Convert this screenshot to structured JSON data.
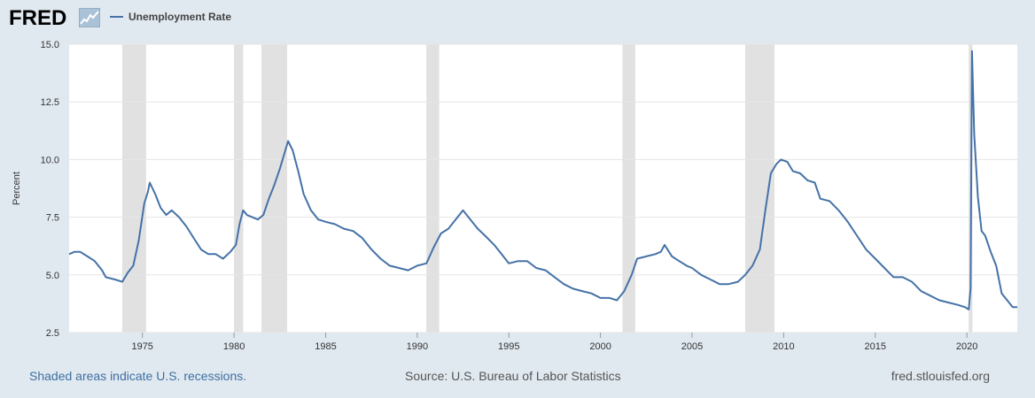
{
  "header": {
    "logo_text": "FRED",
    "legend_label": "Unemployment Rate"
  },
  "footer": {
    "recession_note": "Shaded areas indicate U.S. recessions.",
    "source": "Source: U.S. Bureau of Labor Statistics",
    "site": "fred.stlouisfed.org"
  },
  "colors": {
    "line": "#4572a7",
    "recession": "#e1e1e1",
    "grid": "#e6e6e6",
    "background": "#e1e9f0",
    "plot_background": "#ffffff"
  },
  "chart_data": {
    "type": "line",
    "title": "",
    "xlabel": "",
    "ylabel": "Percent",
    "xlim": [
      1971.0,
      2022.75
    ],
    "ylim": [
      2.5,
      15.0
    ],
    "yticks": [
      2.5,
      5.0,
      7.5,
      10.0,
      12.5,
      15.0
    ],
    "ytick_labels": [
      "2.5",
      "5.0",
      "7.5",
      "10.0",
      "12.5",
      "15.0"
    ],
    "xticks": [
      1975,
      1980,
      1985,
      1990,
      1995,
      2000,
      2005,
      2010,
      2015,
      2020
    ],
    "xtick_labels": [
      "1975",
      "1980",
      "1985",
      "1990",
      "1995",
      "2000",
      "2005",
      "2010",
      "2015",
      "2020"
    ],
    "grid": "horizontal",
    "legend": "top-left",
    "recessions": [
      [
        1973.9,
        1975.2
      ],
      [
        1980.0,
        1980.5
      ],
      [
        1981.5,
        1982.9
      ],
      [
        1990.5,
        1991.2
      ],
      [
        2001.2,
        2001.9
      ],
      [
        2007.9,
        2009.5
      ],
      [
        2020.1,
        2020.3
      ]
    ],
    "series": [
      {
        "name": "Unemployment Rate",
        "x": [
          1971.0,
          1971.3,
          1971.6,
          1972.0,
          1972.4,
          1972.8,
          1973.0,
          1973.5,
          1973.9,
          1974.2,
          1974.5,
          1974.8,
          1975.1,
          1975.3,
          1975.4,
          1975.7,
          1976.0,
          1976.3,
          1976.6,
          1977.0,
          1977.4,
          1977.8,
          1978.2,
          1978.6,
          1979.0,
          1979.4,
          1979.8,
          1980.1,
          1980.3,
          1980.5,
          1980.7,
          1981.0,
          1981.3,
          1981.6,
          1981.9,
          1982.2,
          1982.5,
          1982.8,
          1982.95,
          1983.2,
          1983.5,
          1983.8,
          1984.2,
          1984.6,
          1985.0,
          1985.5,
          1986.0,
          1986.5,
          1987.0,
          1987.5,
          1988.0,
          1988.5,
          1989.0,
          1989.5,
          1990.0,
          1990.5,
          1990.9,
          1991.3,
          1991.7,
          1992.0,
          1992.3,
          1992.5,
          1992.9,
          1993.3,
          1993.7,
          1994.2,
          1994.6,
          1995.0,
          1995.5,
          1996.0,
          1996.5,
          1997.0,
          1997.5,
          1998.0,
          1998.5,
          1999.0,
          1999.5,
          2000.0,
          2000.5,
          2000.9,
          2001.3,
          2001.7,
          2002.0,
          2002.5,
          2003.0,
          2003.3,
          2003.5,
          2003.9,
          2004.3,
          2004.7,
          2005.0,
          2005.5,
          2006.0,
          2006.5,
          2007.0,
          2007.5,
          2007.9,
          2008.3,
          2008.7,
          2009.0,
          2009.3,
          2009.6,
          2009.85,
          2010.2,
          2010.5,
          2010.9,
          2011.3,
          2011.7,
          2012.0,
          2012.5,
          2013.0,
          2013.5,
          2014.0,
          2014.5,
          2015.0,
          2015.5,
          2016.0,
          2016.5,
          2017.0,
          2017.5,
          2018.0,
          2018.5,
          2019.0,
          2019.5,
          2019.9,
          2020.1,
          2020.2,
          2020.28,
          2020.4,
          2020.6,
          2020.8,
          2021.0,
          2021.3,
          2021.6,
          2021.9,
          2022.2,
          2022.5,
          2022.75
        ],
        "values": [
          5.9,
          6.0,
          6.0,
          5.8,
          5.6,
          5.2,
          4.9,
          4.8,
          4.7,
          5.1,
          5.4,
          6.5,
          8.1,
          8.6,
          9.0,
          8.5,
          7.9,
          7.6,
          7.8,
          7.5,
          7.1,
          6.6,
          6.1,
          5.9,
          5.9,
          5.7,
          6.0,
          6.3,
          7.2,
          7.8,
          7.6,
          7.5,
          7.4,
          7.6,
          8.3,
          8.9,
          9.6,
          10.4,
          10.8,
          10.4,
          9.5,
          8.5,
          7.8,
          7.4,
          7.3,
          7.2,
          7.0,
          6.9,
          6.6,
          6.1,
          5.7,
          5.4,
          5.3,
          5.2,
          5.4,
          5.5,
          6.2,
          6.8,
          7.0,
          7.3,
          7.6,
          7.8,
          7.4,
          7.0,
          6.7,
          6.3,
          5.9,
          5.5,
          5.6,
          5.6,
          5.3,
          5.2,
          4.9,
          4.6,
          4.4,
          4.3,
          4.2,
          4.0,
          4.0,
          3.9,
          4.3,
          5.0,
          5.7,
          5.8,
          5.9,
          6.0,
          6.3,
          5.8,
          5.6,
          5.4,
          5.3,
          5.0,
          4.8,
          4.6,
          4.6,
          4.7,
          5.0,
          5.4,
          6.1,
          7.8,
          9.4,
          9.8,
          10.0,
          9.9,
          9.5,
          9.4,
          9.1,
          9.0,
          8.3,
          8.2,
          7.8,
          7.3,
          6.7,
          6.1,
          5.7,
          5.3,
          4.9,
          4.9,
          4.7,
          4.3,
          4.1,
          3.9,
          3.8,
          3.7,
          3.6,
          3.5,
          4.4,
          14.7,
          11.1,
          8.4,
          6.9,
          6.7,
          6.0,
          5.4,
          4.2,
          3.9,
          3.6,
          3.6
        ]
      }
    ]
  }
}
